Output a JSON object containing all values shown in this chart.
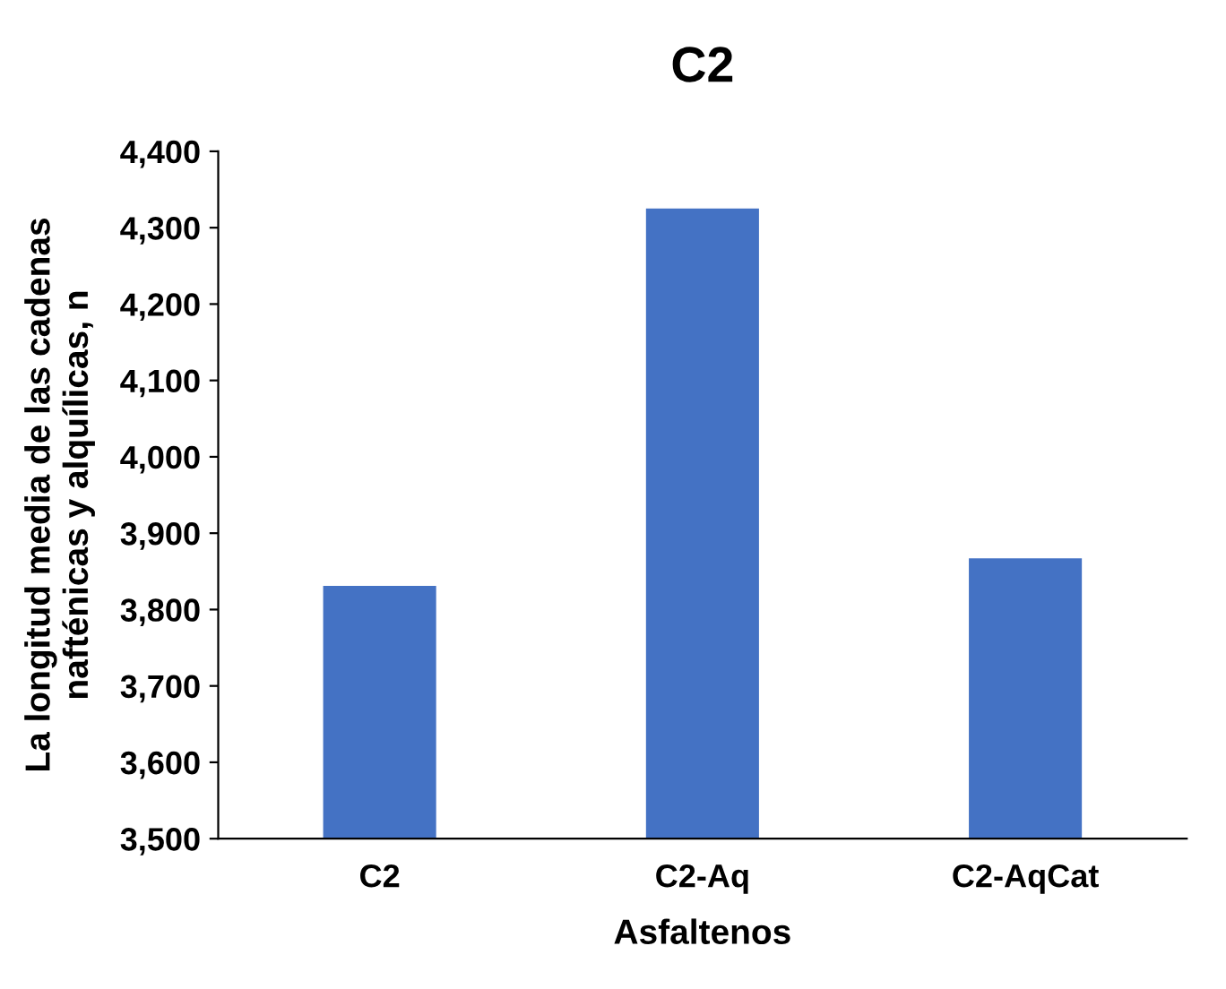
{
  "chart_data": {
    "type": "bar",
    "title": "C2",
    "xlabel": "Asfaltenos",
    "ylabel": "La longitud media de las cadenas\nnafténicas y alquílicas, n",
    "categories": [
      "C2",
      "C2-Aq",
      "C2-AqCat"
    ],
    "values": [
      3831,
      4325,
      3867
    ],
    "color": "#4472c4",
    "ylim": [
      3500,
      4400
    ],
    "yticks": [
      {
        "value": 3500,
        "label": "3,500"
      },
      {
        "value": 3600,
        "label": "3,600"
      },
      {
        "value": 3700,
        "label": "3,700"
      },
      {
        "value": 3800,
        "label": "3,800"
      },
      {
        "value": 3900,
        "label": "3,900"
      },
      {
        "value": 4000,
        "label": "4,000"
      },
      {
        "value": 4100,
        "label": "4,100"
      },
      {
        "value": 4200,
        "label": "4,200"
      },
      {
        "value": 4300,
        "label": "4,300"
      },
      {
        "value": 4400,
        "label": "4,400"
      }
    ],
    "grid": false,
    "legend": false
  }
}
